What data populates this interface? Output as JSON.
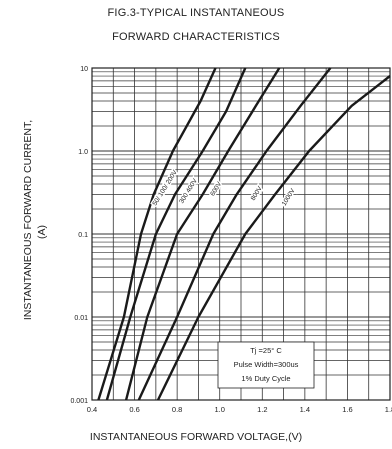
{
  "chart_data": {
    "type": "line",
    "title": "FIG.3-TYPICAL INSTANTANEOUS",
    "subtitle": "FORWARD CHARACTERISTICS",
    "xlabel": "INSTANTANEOUS FORWARD VOLTAGE,(V)",
    "ylabel": "INSTANTANEOUS FORWARD CURRENT,",
    "ylabel_unit": "(A)",
    "xlim": [
      0.4,
      1.8
    ],
    "ylim": [
      0.001,
      10
    ],
    "yscale": "log",
    "grid": true,
    "x_ticks": [
      "0.4",
      "0.6",
      "0.8",
      "1.0",
      "1.2",
      "1.4",
      "1.6",
      "1.8"
    ],
    "y_ticks": [
      "0.001",
      "0.01",
      "0.1",
      "1.0",
      "10"
    ],
    "series": [
      {
        "name": "50/ 100/ 200V",
        "points": [
          [
            0.43,
            0.001
          ],
          [
            0.55,
            0.01
          ],
          [
            0.63,
            0.1
          ],
          [
            0.69,
            0.3
          ],
          [
            0.78,
            1.0
          ],
          [
            0.91,
            4.0
          ],
          [
            0.98,
            10
          ]
        ]
      },
      {
        "name": "300 400V",
        "points": [
          [
            0.47,
            0.001
          ],
          [
            0.58,
            0.01
          ],
          [
            0.7,
            0.1
          ],
          [
            0.79,
            0.3
          ],
          [
            0.92,
            1.0
          ],
          [
            1.03,
            3.0
          ],
          [
            1.12,
            10
          ]
        ]
      },
      {
        "name": "600V",
        "points": [
          [
            0.56,
            0.001
          ],
          [
            0.66,
            0.01
          ],
          [
            0.8,
            0.1
          ],
          [
            0.92,
            0.3
          ],
          [
            1.04,
            1.0
          ],
          [
            1.17,
            3.5
          ],
          [
            1.28,
            10
          ]
        ]
      },
      {
        "name": "800V",
        "points": [
          [
            0.62,
            0.001
          ],
          [
            0.8,
            0.01
          ],
          [
            0.97,
            0.1
          ],
          [
            1.08,
            0.3
          ],
          [
            1.22,
            1.0
          ],
          [
            1.38,
            3.5
          ],
          [
            1.52,
            10
          ]
        ]
      },
      {
        "name": "1000V",
        "points": [
          [
            0.71,
            0.001
          ],
          [
            0.9,
            0.01
          ],
          [
            1.12,
            0.1
          ],
          [
            1.26,
            0.3
          ],
          [
            1.42,
            1.0
          ],
          [
            1.62,
            3.5
          ],
          [
            1.8,
            8.0
          ]
        ]
      }
    ],
    "annotation": [
      "Tj =25° C",
      "Pulse Width=300us",
      "1% Duty Cycle"
    ]
  }
}
